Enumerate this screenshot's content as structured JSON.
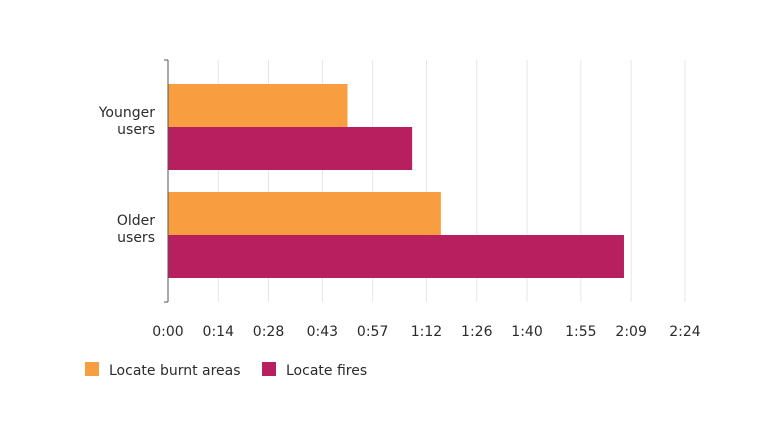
{
  "chart_data": {
    "type": "bar",
    "orientation": "horizontal",
    "categories": [
      "Younger users",
      "Older users"
    ],
    "category_lines": [
      [
        "Younger",
        "users"
      ],
      [
        "Older",
        "users"
      ]
    ],
    "series": [
      {
        "name": "Locate burnt areas",
        "color": "#F99E40",
        "values": [
          50,
          76
        ]
      },
      {
        "name": "Locate fires",
        "color": "#B71F5F",
        "values": [
          68,
          127
        ]
      }
    ],
    "x_unit": "seconds",
    "xlim": [
      0,
      144
    ],
    "x_tick_values": [
      0,
      14,
      28,
      43,
      57,
      72,
      86,
      100,
      115,
      129,
      144
    ],
    "x_tick_labels": [
      "0:00",
      "0:14",
      "0:28",
      "0:43",
      "0:57",
      "1:12",
      "1:26",
      "1:40",
      "1:55",
      "2:09",
      "2:24"
    ],
    "grid": true,
    "legend_position": "bottom-left",
    "title": "",
    "xlabel": "",
    "ylabel": ""
  }
}
